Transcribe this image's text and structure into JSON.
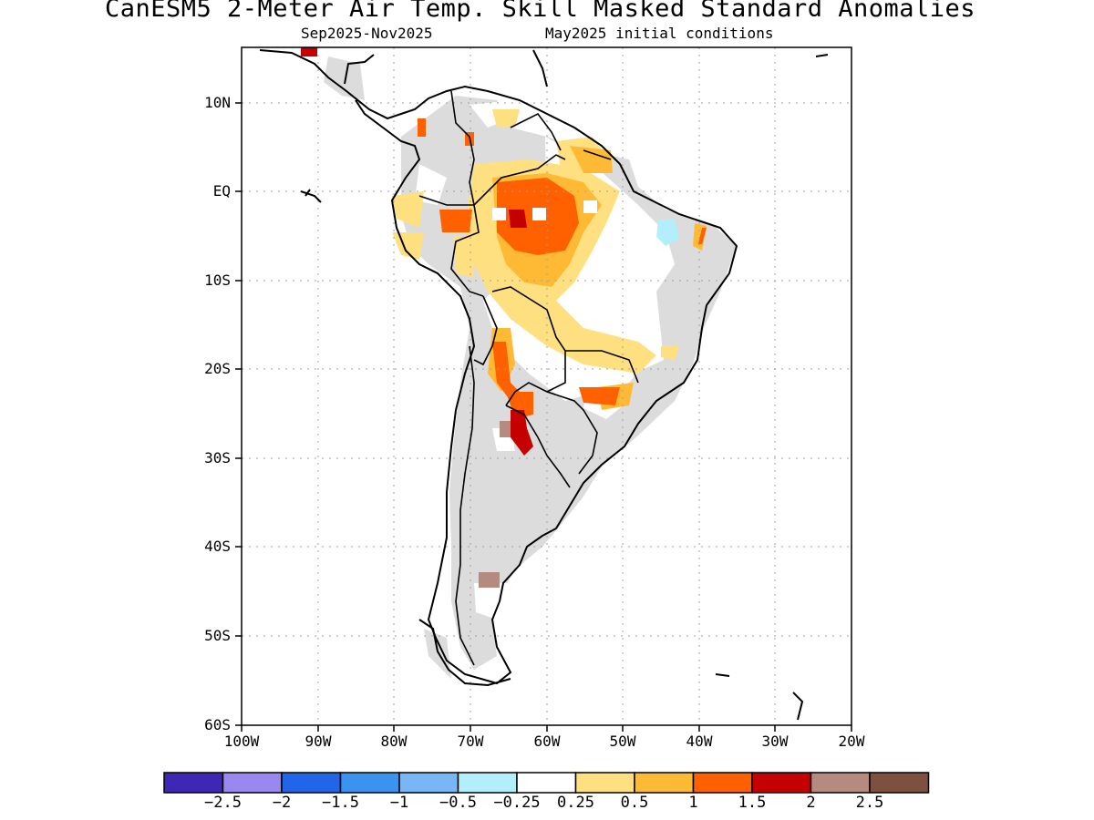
{
  "title": "CanESM5 2-Meter Air Temp. Skill Masked Standard Anomalies",
  "subtitle_left": "Sep2025-Nov2025",
  "subtitle_right": "May2025 initial conditions",
  "lat_labels": [
    "10N",
    "EQ",
    "10S",
    "20S",
    "30S",
    "40S",
    "50S",
    "60S"
  ],
  "lon_labels": [
    "100W",
    "90W",
    "80W",
    "70W",
    "60W",
    "50W",
    "40W",
    "30W",
    "20W"
  ],
  "colorbar": {
    "colors": [
      "#3f27b5",
      "#9a87f0",
      "#2166e8",
      "#3b93f0",
      "#78b6f6",
      "#b3effa",
      "#ffffff",
      "#ffe080",
      "#ffba35",
      "#ff6000",
      "#c40000",
      "#b58a7f",
      "#7e5040"
    ],
    "labels": [
      "-2.5",
      "-2",
      "-1.5",
      "-1",
      "-0.5",
      "-0.25",
      "0.25",
      "0.5",
      "1",
      "1.5",
      "2",
      "2.5"
    ]
  },
  "colors": {
    "masked": "#dcdcdc",
    "coast": "#000000",
    "grid": "#a0a0a0"
  }
}
